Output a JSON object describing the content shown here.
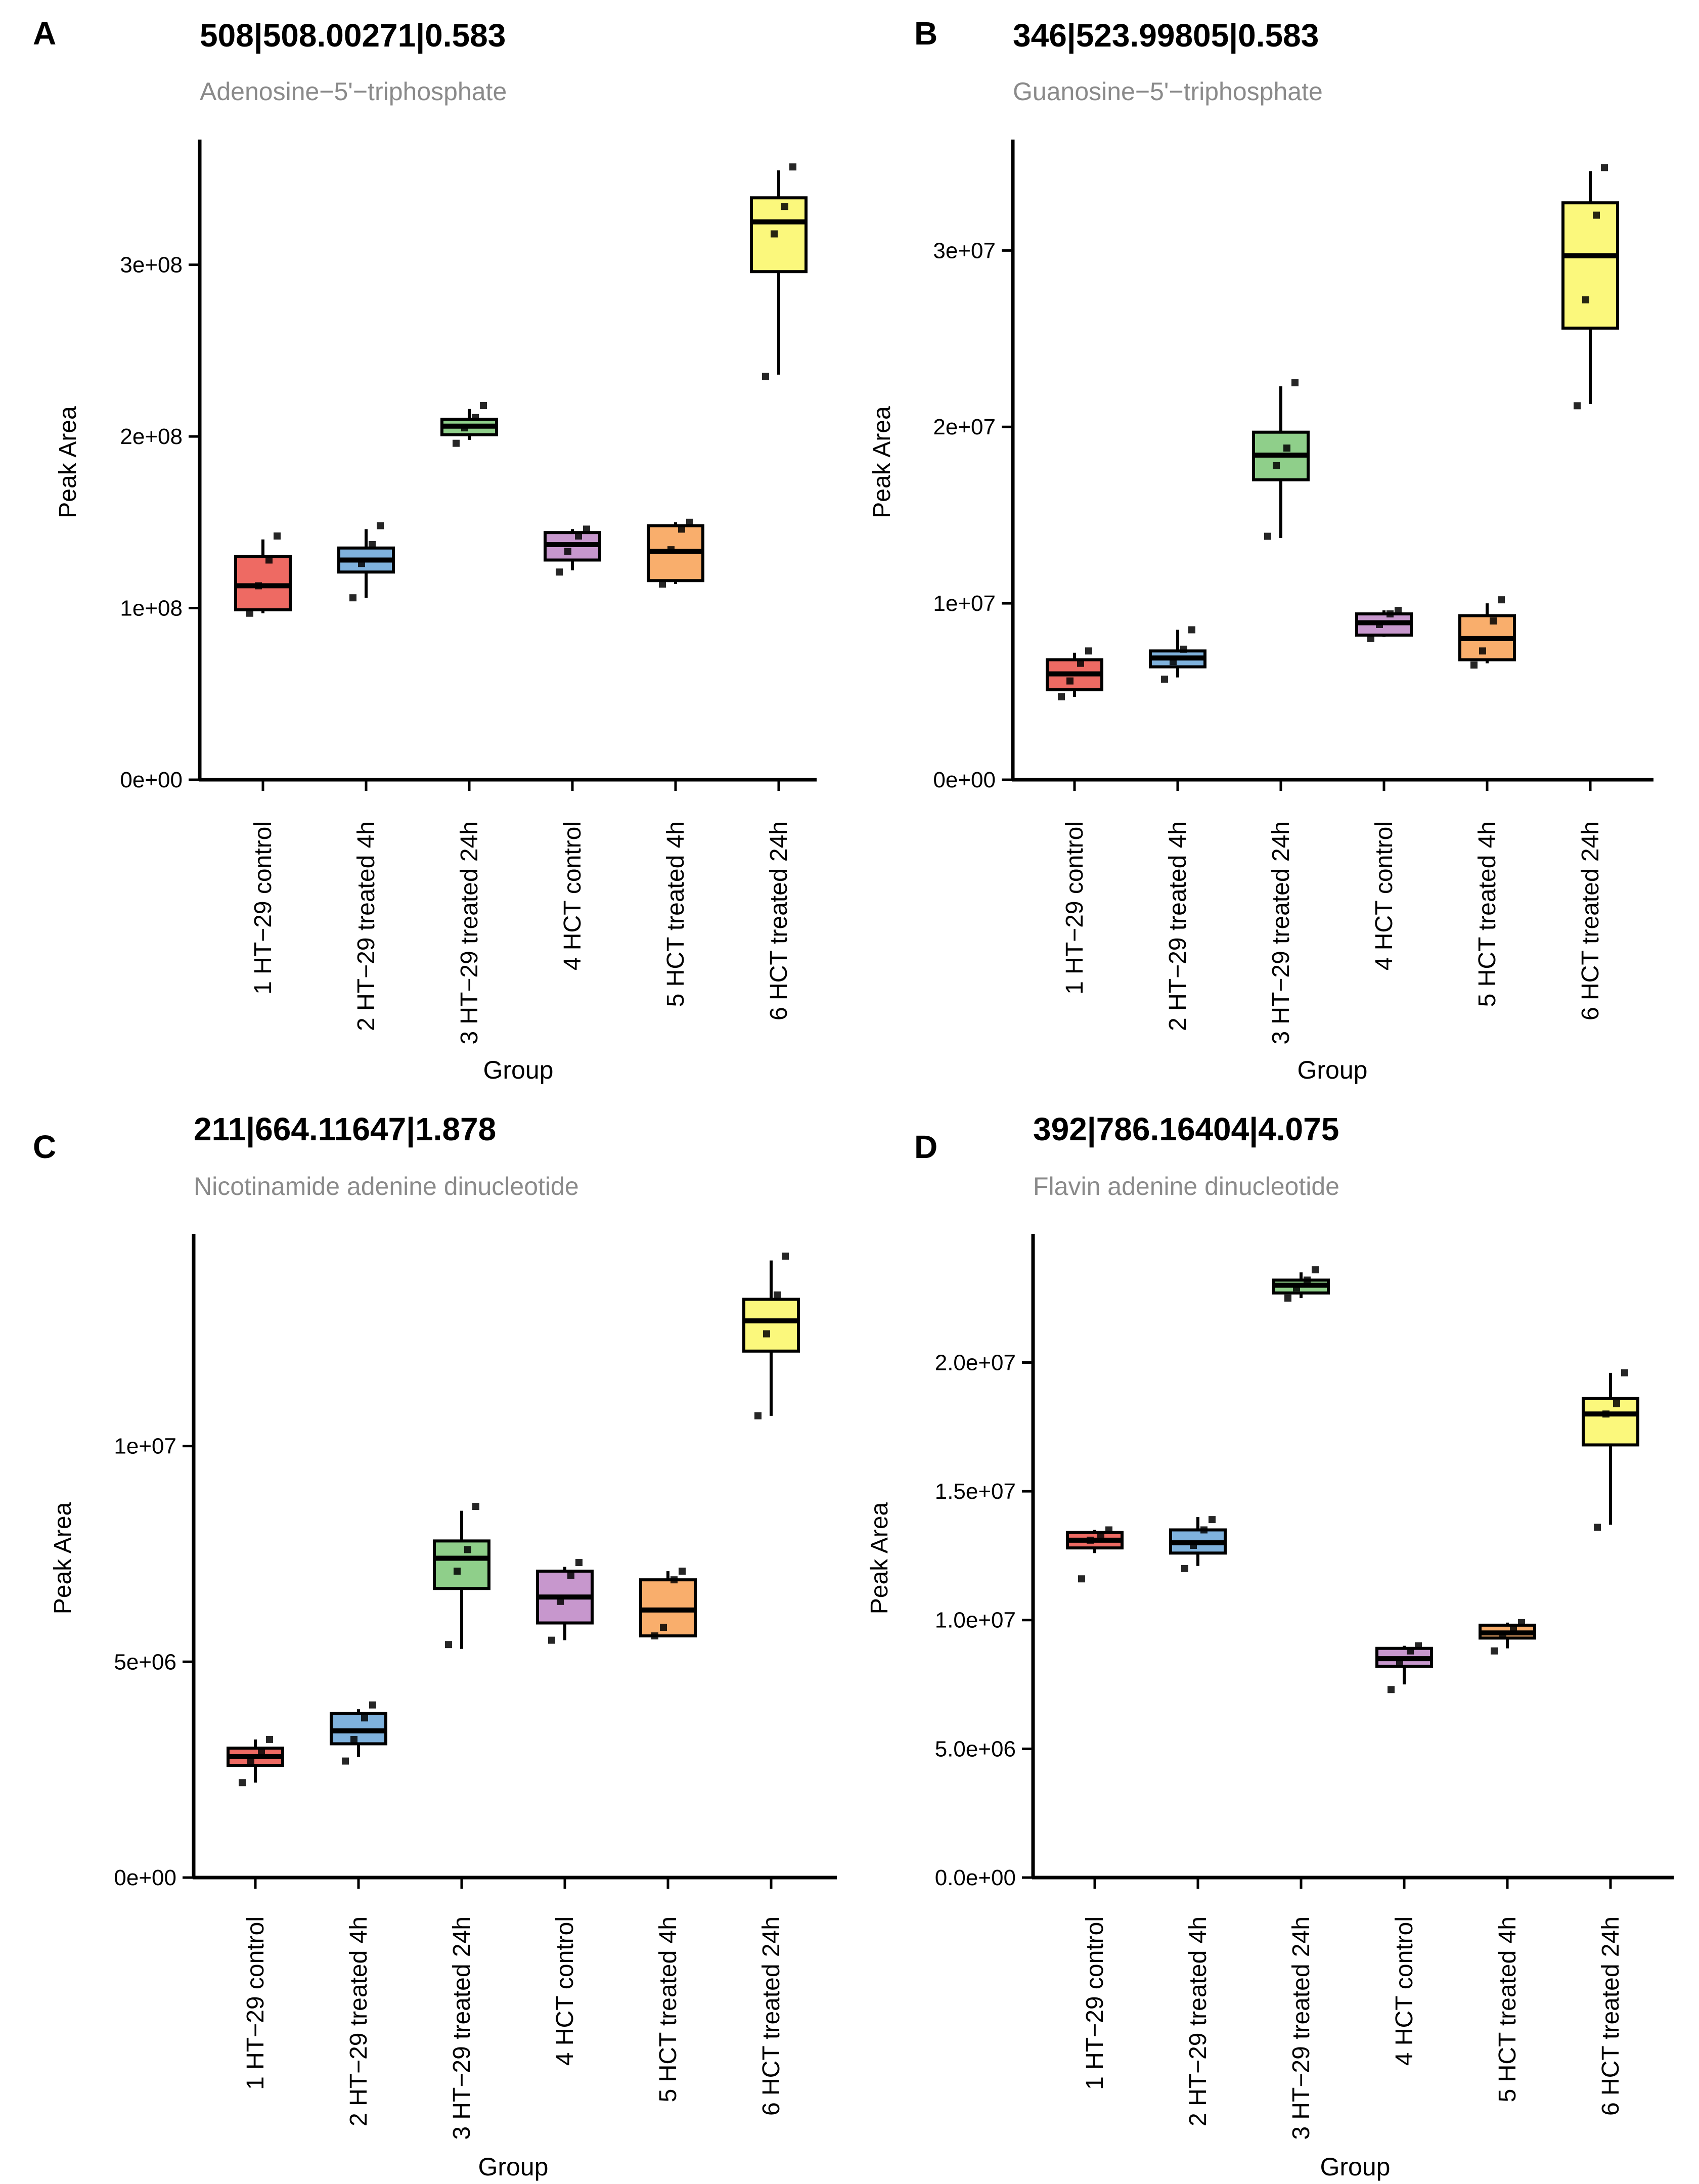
{
  "figure": {
    "x_axis_label": "Group",
    "y_axis_label": "Peak Area"
  },
  "groups": [
    "1 HT−29 control",
    "2 HT−29 treated 4h",
    "3 HT−29 treated 24h",
    "4 HCT control",
    "5 HCT treated 4h",
    "6 HCT treated 24h"
  ],
  "colors": {
    "red": "#ee6a63",
    "blue": "#7fb2dd",
    "green": "#8fcf8a",
    "purple": "#c797cd",
    "orange": "#f9ae6c",
    "yellow": "#fbf87c",
    "subtitle": "#8a8a8a",
    "ink": "#000000"
  },
  "chart_data": [
    {
      "panel_letter": "A",
      "type": "box",
      "title": "508|508.00271|0.583",
      "subtitle": "Adenosine−5'−triphosphate",
      "xlabel": "Group",
      "ylabel": "Peak Area",
      "ylim": [
        0,
        370000000
      ],
      "yticks": [
        0,
        100000000,
        200000000,
        300000000
      ],
      "ytick_labels": [
        "0e+00",
        "1e+08",
        "2e+08",
        "3e+08"
      ],
      "box_colors": [
        "#ee6a63",
        "#7fb2dd",
        "#8fcf8a",
        "#c797cd",
        "#f9ae6c",
        "#fbf87c"
      ],
      "boxes": [
        {
          "min": 97000000,
          "q1": 99000000,
          "median": 113000000,
          "q3": 130000000,
          "max": 140000000
        },
        {
          "min": 106000000,
          "q1": 121000000,
          "median": 128000000,
          "q3": 135000000,
          "max": 146000000
        },
        {
          "min": 198000000,
          "q1": 201000000,
          "median": 206000000,
          "q3": 210000000,
          "max": 216000000
        },
        {
          "min": 122000000,
          "q1": 128000000,
          "median": 137000000,
          "q3": 144000000,
          "max": 146000000
        },
        {
          "min": 114000000,
          "q1": 116000000,
          "median": 133000000,
          "q3": 148000000,
          "max": 150000000
        },
        {
          "min": 236000000,
          "q1": 296000000,
          "median": 325000000,
          "q3": 339000000,
          "max": 355000000
        }
      ],
      "points": [
        [
          97000000,
          113000000,
          128000000,
          142000000
        ],
        [
          106000000,
          126000000,
          137000000,
          148000000
        ],
        [
          196000000,
          205000000,
          211000000,
          218000000
        ],
        [
          121000000,
          133000000,
          142000000,
          146000000
        ],
        [
          114000000,
          134000000,
          146000000,
          150000000
        ],
        [
          235000000,
          318000000,
          334000000,
          357000000
        ]
      ]
    },
    {
      "panel_letter": "B",
      "type": "box",
      "title": "346|523.99805|0.583",
      "subtitle": "Guanosine−5'−triphosphate",
      "xlabel": "Group",
      "ylabel": "Peak Area",
      "ylim": [
        0,
        36000000
      ],
      "yticks": [
        0,
        10000000,
        20000000,
        30000000
      ],
      "ytick_labels": [
        "0e+00",
        "1e+07",
        "2e+07",
        "3e+07"
      ],
      "box_colors": [
        "#ee6a63",
        "#7fb2dd",
        "#8fcf8a",
        "#c797cd",
        "#f9ae6c",
        "#fbf87c"
      ],
      "boxes": [
        {
          "min": 4700000,
          "q1": 5100000,
          "median": 6000000,
          "q3": 6800000,
          "max": 7200000
        },
        {
          "min": 5800000,
          "q1": 6400000,
          "median": 6900000,
          "q3": 7300000,
          "max": 8500000
        },
        {
          "min": 13700000,
          "q1": 17000000,
          "median": 18400000,
          "q3": 19700000,
          "max": 22300000
        },
        {
          "min": 8100000,
          "q1": 8200000,
          "median": 8900000,
          "q3": 9400000,
          "max": 9600000
        },
        {
          "min": 6600000,
          "q1": 6800000,
          "median": 8000000,
          "q3": 9300000,
          "max": 10000000
        },
        {
          "min": 21300000,
          "q1": 25600000,
          "median": 29700000,
          "q3": 32700000,
          "max": 34500000
        }
      ],
      "points": [
        [
          4700000,
          5600000,
          6600000,
          7300000
        ],
        [
          5700000,
          6700000,
          7400000,
          8500000
        ],
        [
          13800000,
          17800000,
          18800000,
          22500000
        ],
        [
          8000000,
          8800000,
          9400000,
          9600000
        ],
        [
          6500000,
          7300000,
          9000000,
          10200000
        ],
        [
          21200000,
          27200000,
          32000000,
          34700000
        ]
      ]
    },
    {
      "panel_letter": "C",
      "type": "box",
      "title": "211|664.11647|1.878",
      "subtitle": "Nicotinamide adenine dinucleotide",
      "xlabel": "Group",
      "ylabel": "Peak Area",
      "ylim": [
        0,
        14800000
      ],
      "yticks": [
        0,
        5000000,
        10000000
      ],
      "ytick_labels": [
        "0e+00",
        "5e+06",
        "1e+07"
      ],
      "box_colors": [
        "#ee6a63",
        "#7fb2dd",
        "#8fcf8a",
        "#c797cd",
        "#f9ae6c",
        "#fbf87c"
      ],
      "boxes": [
        {
          "min": 2200000,
          "q1": 2600000,
          "median": 2800000,
          "q3": 3000000,
          "max": 3200000
        },
        {
          "min": 2800000,
          "q1": 3100000,
          "median": 3400000,
          "q3": 3800000,
          "max": 3900000
        },
        {
          "min": 5300000,
          "q1": 6700000,
          "median": 7400000,
          "q3": 7800000,
          "max": 8500000
        },
        {
          "min": 5500000,
          "q1": 5900000,
          "median": 6500000,
          "q3": 7100000,
          "max": 7200000
        },
        {
          "min": 5600000,
          "q1": 5600000,
          "median": 6200000,
          "q3": 6900000,
          "max": 7100000
        },
        {
          "min": 10700000,
          "q1": 12200000,
          "median": 12900000,
          "q3": 13400000,
          "max": 14300000
        }
      ],
      "points": [
        [
          2200000,
          2700000,
          2900000,
          3200000
        ],
        [
          2700000,
          3200000,
          3700000,
          4000000
        ],
        [
          5400000,
          7100000,
          7600000,
          8600000
        ],
        [
          5500000,
          6400000,
          7000000,
          7300000
        ],
        [
          5600000,
          5800000,
          6900000,
          7100000
        ],
        [
          10700000,
          12600000,
          13500000,
          14400000
        ]
      ]
    },
    {
      "panel_letter": "D",
      "type": "box",
      "title": "392|786.16404|4.075",
      "subtitle": "Flavin adenine dinucleotide",
      "xlabel": "Group",
      "ylabel": "Peak Area",
      "ylim": [
        0,
        24800000
      ],
      "yticks": [
        0,
        5000000,
        10000000,
        15000000,
        20000000
      ],
      "ytick_labels": [
        "0.0e+00",
        "5.0e+06",
        "1.0e+07",
        "1.5e+07",
        "2.0e+07"
      ],
      "box_colors": [
        "#ee6a63",
        "#7fb2dd",
        "#8fcf8a",
        "#c797cd",
        "#f9ae6c",
        "#fbf87c"
      ],
      "boxes": [
        {
          "min": 12600000,
          "q1": 12800000,
          "median": 13100000,
          "q3": 13400000,
          "max": 13500000
        },
        {
          "min": 12100000,
          "q1": 12600000,
          "median": 13000000,
          "q3": 13500000,
          "max": 14000000
        },
        {
          "min": 22500000,
          "q1": 22700000,
          "median": 23000000,
          "q3": 23200000,
          "max": 23500000
        },
        {
          "min": 7500000,
          "q1": 8200000,
          "median": 8500000,
          "q3": 8900000,
          "max": 9000000
        },
        {
          "min": 8900000,
          "q1": 9300000,
          "median": 9500000,
          "q3": 9800000,
          "max": 9900000
        },
        {
          "min": 13700000,
          "q1": 16800000,
          "median": 18000000,
          "q3": 18600000,
          "max": 19600000
        }
      ],
      "points": [
        [
          11600000,
          13100000,
          13300000,
          13500000
        ],
        [
          12000000,
          12900000,
          13500000,
          13900000
        ],
        [
          22500000,
          22900000,
          23200000,
          23600000
        ],
        [
          7300000,
          8400000,
          8800000,
          9000000
        ],
        [
          8800000,
          9400000,
          9700000,
          9900000
        ],
        [
          13600000,
          18000000,
          18400000,
          19600000
        ]
      ]
    }
  ]
}
